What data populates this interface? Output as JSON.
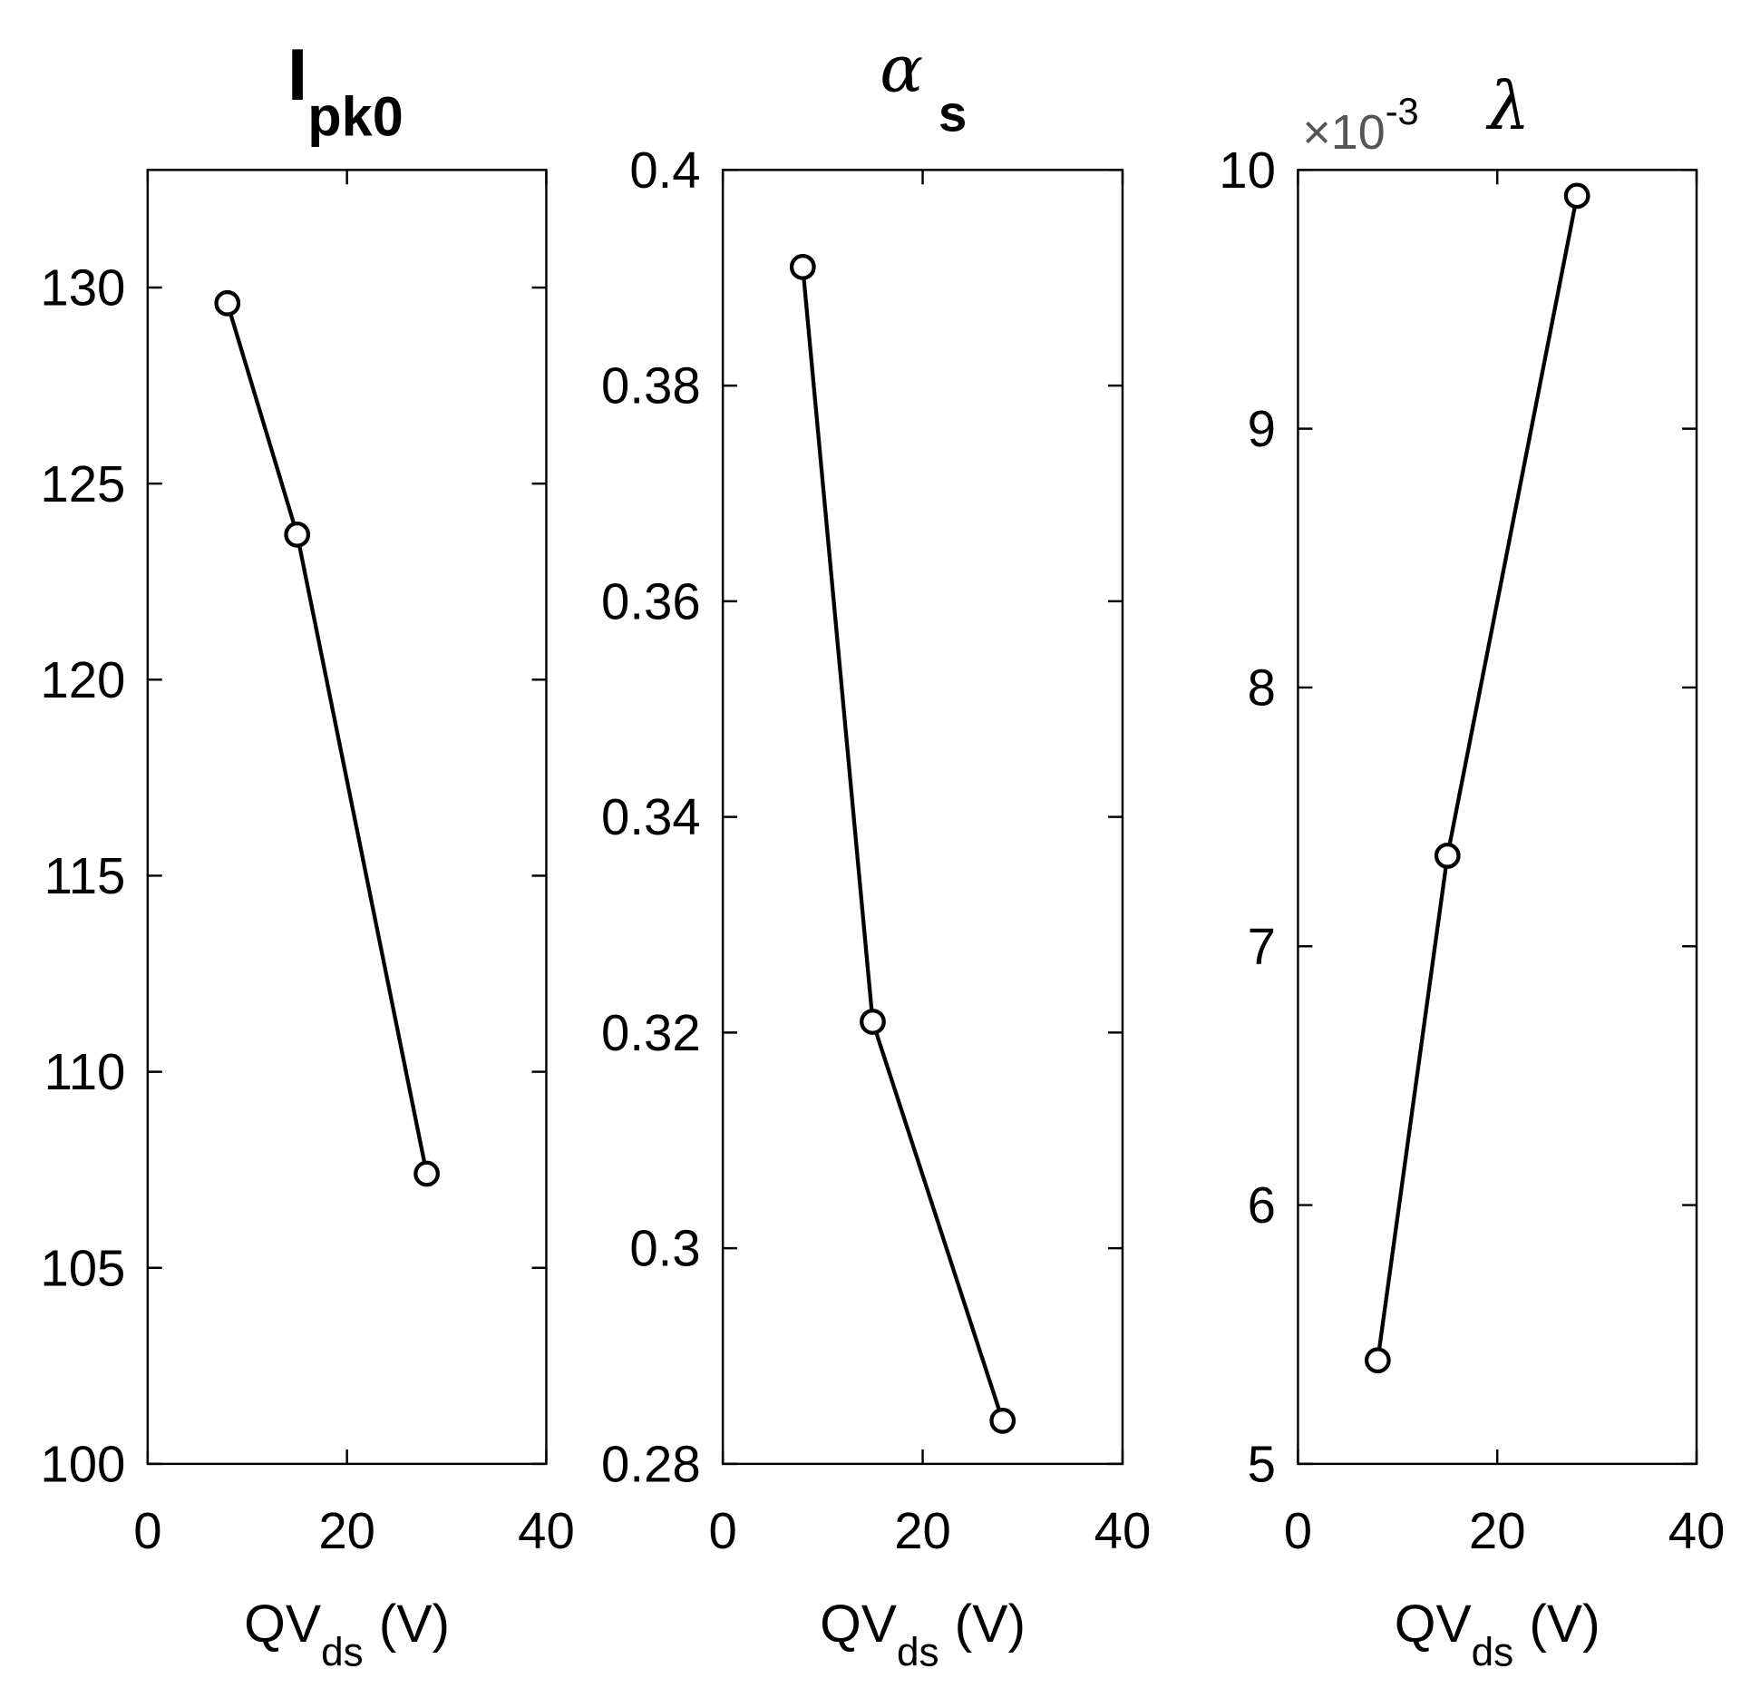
{
  "chart_data": [
    {
      "type": "line",
      "title": "I",
      "title_subscript": "pk0",
      "x": [
        8,
        15,
        28
      ],
      "values": [
        129.6,
        123.7,
        107.4
      ],
      "xlim": [
        0,
        40
      ],
      "ylim": [
        100,
        133
      ],
      "xticks": [
        0,
        20,
        40
      ],
      "xtick_labels": [
        "0",
        "20",
        "40"
      ],
      "yticks": [
        100,
        105,
        110,
        115,
        120,
        125,
        130
      ],
      "ytick_labels": [
        "100",
        "105",
        "110",
        "115",
        "120",
        "125",
        "130"
      ],
      "xlabel": "QV",
      "xlabel_subscript": "ds",
      "xlabel_unit": "(V)",
      "marker": "circle-open",
      "color": "#000000",
      "grid": false
    },
    {
      "type": "line",
      "title": "α",
      "title_subscript": "s",
      "x": [
        8,
        15,
        28
      ],
      "values": [
        0.391,
        0.321,
        0.284
      ],
      "xlim": [
        0,
        40
      ],
      "ylim": [
        0.28,
        0.4
      ],
      "xticks": [
        0,
        20,
        40
      ],
      "xtick_labels": [
        "0",
        "20",
        "40"
      ],
      "yticks": [
        0.28,
        0.3,
        0.32,
        0.34,
        0.36,
        0.38,
        0.4
      ],
      "ytick_labels": [
        "0.28",
        "0.3",
        "0.32",
        "0.34",
        "0.36",
        "0.38",
        "0.4"
      ],
      "xlabel": "QV",
      "xlabel_subscript": "ds",
      "xlabel_unit": "(V)",
      "marker": "circle-open",
      "color": "#000000",
      "grid": false
    },
    {
      "type": "line",
      "title": "λ",
      "x": [
        8,
        15,
        28
      ],
      "values": [
        5.4,
        7.35,
        9.9
      ],
      "scale_base": "×10",
      "scale_exponent": "-3",
      "xlim": [
        0,
        40
      ],
      "ylim": [
        5,
        10
      ],
      "xticks": [
        0,
        20,
        40
      ],
      "xtick_labels": [
        "0",
        "20",
        "40"
      ],
      "yticks": [
        5,
        6,
        7,
        8,
        9,
        10
      ],
      "ytick_labels": [
        "5",
        "6",
        "7",
        "8",
        "9",
        "10"
      ],
      "xlabel": "QV",
      "xlabel_subscript": "ds",
      "xlabel_unit": "(V)",
      "marker": "circle-open",
      "color": "#000000",
      "grid": false
    }
  ]
}
